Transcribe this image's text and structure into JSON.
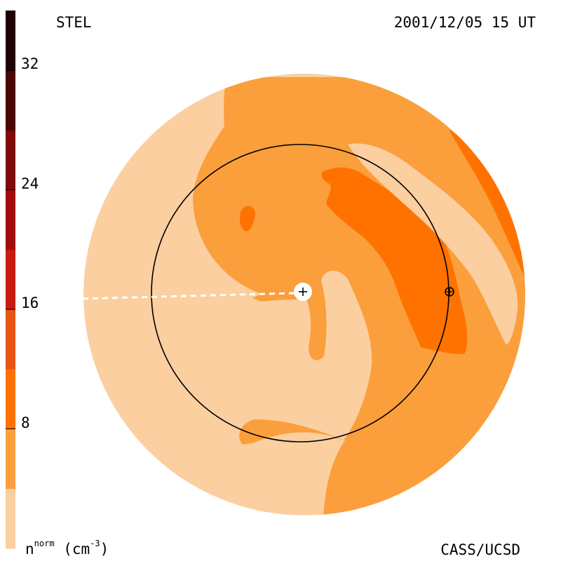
{
  "header": {
    "instrument": "STEL",
    "datetime": "2001/12/05 15 UT"
  },
  "footer": {
    "credit": "CASS/UCSD",
    "unit_main": "n",
    "unit_sup": "norm",
    "unit_rest": " (cm",
    "unit_exp": "-3",
    "unit_close": ")"
  },
  "colorbar": {
    "ticks": [
      {
        "value": 8,
        "label": "8"
      },
      {
        "value": 16,
        "label": "16"
      },
      {
        "value": 24,
        "label": "24"
      },
      {
        "value": 32,
        "label": "32"
      }
    ],
    "range": [
      0,
      36
    ],
    "bands": [
      {
        "from": 0,
        "to": 4,
        "color": "#fbcfa0"
      },
      {
        "from": 4,
        "to": 8,
        "color": "#fa9f3c"
      },
      {
        "from": 8,
        "to": 12,
        "color": "#ff7200"
      },
      {
        "from": 12,
        "to": 16,
        "color": "#e85614"
      },
      {
        "from": 16,
        "to": 20,
        "color": "#c81b10"
      },
      {
        "from": 20,
        "to": 24,
        "color": "#a20c0c"
      },
      {
        "from": 24,
        "to": 28,
        "color": "#7e0a0a"
      },
      {
        "from": 28,
        "to": 32,
        "color": "#4a0505"
      },
      {
        "from": 32,
        "to": 36,
        "color": "#200202"
      }
    ]
  },
  "map": {
    "colors": {
      "low": "#fbcfa0",
      "mid": "#fa9f3c",
      "high": "#ff7200",
      "outline": "#000000"
    },
    "markers": [
      "sun-marker",
      "earth-marker"
    ]
  }
}
